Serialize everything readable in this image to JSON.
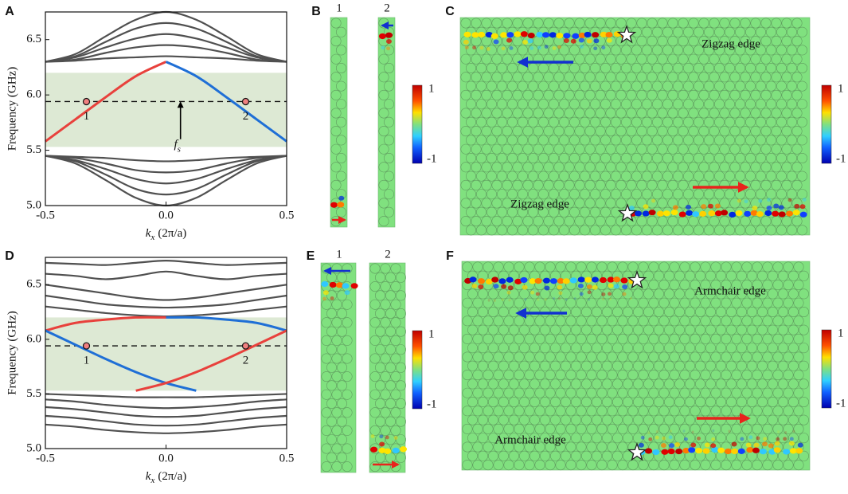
{
  "chart_data": [
    {
      "type": "line",
      "panel": "A",
      "ylabel": "Frequency (GHz)",
      "xlabel": [
        "k",
        "x",
        "(2π/a)"
      ],
      "x": [
        -0.5,
        -0.375,
        -0.25,
        -0.125,
        0,
        0.125,
        0.25,
        0.375,
        0.5
      ],
      "xlim": [
        -0.5,
        0.5
      ],
      "ylim": [
        5.0,
        6.75
      ],
      "xticks": [
        -0.5,
        {
          "value": 0,
          "label": "0.0"
        },
        0.5
      ],
      "yticks": [
        {
          "value": 5,
          "label": "5.0"
        },
        5.5,
        {
          "value": 6,
          "label": "6.0"
        },
        6.5
      ],
      "shaded": [
        5.53,
        6.2
      ],
      "dashed_y": 5.94,
      "points": [
        {
          "label": "1",
          "x": -0.33,
          "y": 5.94
        },
        {
          "label": "2",
          "x": 0.33,
          "y": 5.94
        }
      ],
      "fs_arrow": {
        "x": 0.06,
        "y": [
          5.6,
          5.93
        ]
      },
      "fs_label": [
        "f",
        "s"
      ],
      "series": [
        {
          "color": "#505050",
          "values": [
            6.3,
            6.31,
            6.33,
            6.34,
            6.35,
            6.34,
            6.33,
            6.31,
            6.3
          ]
        },
        {
          "color": "#505050",
          "values": [
            6.3,
            6.32,
            6.38,
            6.43,
            6.45,
            6.43,
            6.38,
            6.32,
            6.3
          ]
        },
        {
          "color": "#505050",
          "values": [
            6.3,
            6.34,
            6.43,
            6.51,
            6.55,
            6.51,
            6.43,
            6.34,
            6.3
          ]
        },
        {
          "color": "#505050",
          "values": [
            6.3,
            6.35,
            6.48,
            6.6,
            6.65,
            6.6,
            6.48,
            6.35,
            6.3
          ]
        },
        {
          "color": "#505050",
          "values": [
            6.3,
            6.37,
            6.53,
            6.68,
            6.75,
            6.68,
            6.53,
            6.37,
            6.3
          ]
        },
        {
          "color": "#505050",
          "values": [
            5.45,
            5.44,
            5.43,
            5.41,
            5.4,
            5.41,
            5.43,
            5.44,
            5.45
          ]
        },
        {
          "color": "#505050",
          "values": [
            5.45,
            5.43,
            5.38,
            5.32,
            5.3,
            5.32,
            5.38,
            5.43,
            5.45
          ]
        },
        {
          "color": "#505050",
          "values": [
            5.45,
            5.41,
            5.33,
            5.24,
            5.2,
            5.24,
            5.33,
            5.41,
            5.45
          ]
        },
        {
          "color": "#505050",
          "values": [
            5.45,
            5.4,
            5.28,
            5.15,
            5.1,
            5.15,
            5.28,
            5.4,
            5.45
          ]
        },
        {
          "color": "#505050",
          "values": [
            5.45,
            5.38,
            5.23,
            5.07,
            5.0,
            5.07,
            5.23,
            5.38,
            5.45
          ]
        },
        {
          "color": "#e8413c",
          "values": [
            5.58,
            5.78,
            5.98,
            6.17,
            6.3,
            null,
            null,
            null,
            null
          ]
        },
        {
          "color": "#1f6fd6",
          "values": [
            null,
            null,
            null,
            null,
            6.3,
            6.17,
            5.98,
            5.78,
            5.58
          ]
        }
      ]
    },
    {
      "type": "line",
      "panel": "D",
      "ylabel": "Frequency (GHz)",
      "xlabel": [
        "k",
        "x",
        "(2π/a)"
      ],
      "x": [
        -0.5,
        -0.375,
        -0.25,
        -0.125,
        0,
        0.125,
        0.25,
        0.375,
        0.5
      ],
      "xlim": [
        -0.5,
        0.5
      ],
      "ylim": [
        5.0,
        6.75
      ],
      "xticks": [
        -0.5,
        {
          "value": 0,
          "label": "0.0"
        },
        0.5
      ],
      "yticks": [
        {
          "value": 5,
          "label": "5.0"
        },
        5.5,
        {
          "value": 6,
          "label": "6.0"
        },
        6.5
      ],
      "shaded": [
        5.53,
        6.2
      ],
      "dashed_y": 5.94,
      "points": [
        {
          "label": "1",
          "x": -0.33,
          "y": 5.94
        },
        {
          "label": "2",
          "x": 0.33,
          "y": 5.94
        }
      ],
      "series": [
        {
          "color": "#505050",
          "values": [
            6.3,
            6.27,
            6.24,
            6.22,
            6.21,
            6.22,
            6.24,
            6.27,
            6.3
          ]
        },
        {
          "color": "#505050",
          "values": [
            6.4,
            6.36,
            6.32,
            6.3,
            6.29,
            6.3,
            6.32,
            6.36,
            6.4
          ]
        },
        {
          "color": "#505050",
          "values": [
            6.5,
            6.46,
            6.42,
            6.38,
            6.36,
            6.38,
            6.42,
            6.46,
            6.5
          ]
        },
        {
          "color": "#505050",
          "values": [
            6.6,
            6.58,
            6.55,
            6.58,
            6.62,
            6.58,
            6.55,
            6.58,
            6.6
          ]
        },
        {
          "color": "#505050",
          "values": [
            6.7,
            6.69,
            6.68,
            6.7,
            6.72,
            6.7,
            6.68,
            6.69,
            6.7
          ]
        },
        {
          "color": "#505050",
          "values": [
            5.5,
            5.49,
            5.48,
            5.47,
            5.47,
            5.47,
            5.48,
            5.49,
            5.5
          ]
        },
        {
          "color": "#505050",
          "values": [
            5.45,
            5.43,
            5.4,
            5.38,
            5.37,
            5.38,
            5.4,
            5.43,
            5.45
          ]
        },
        {
          "color": "#505050",
          "values": [
            5.38,
            5.36,
            5.33,
            5.3,
            5.29,
            5.3,
            5.33,
            5.36,
            5.38
          ]
        },
        {
          "color": "#505050",
          "values": [
            5.3,
            5.28,
            5.25,
            5.22,
            5.21,
            5.22,
            5.25,
            5.28,
            5.3
          ]
        },
        {
          "color": "#505050",
          "values": [
            5.22,
            5.2,
            5.17,
            5.15,
            5.14,
            5.15,
            5.17,
            5.2,
            5.22
          ]
        },
        {
          "color": "#e8413c",
          "values": [
            6.08,
            6.15,
            6.18,
            6.2,
            6.2,
            null,
            null,
            null,
            null
          ]
        },
        {
          "color": "#1f6fd6",
          "values": [
            null,
            null,
            null,
            null,
            6.2,
            6.2,
            6.18,
            6.15,
            6.08
          ]
        },
        {
          "color": "#1f6fd6",
          "values": [
            6.08,
            5.95,
            5.82,
            5.7,
            5.6,
            5.53,
            null,
            null,
            null
          ]
        },
        {
          "color": "#e8413c",
          "values": [
            null,
            null,
            null,
            5.53,
            5.6,
            5.7,
            5.82,
            5.95,
            6.08
          ]
        }
      ]
    }
  ],
  "maps": [
    {
      "panel": "B",
      "columns": [
        "1",
        "2"
      ],
      "colorbar": [
        "1",
        "-1"
      ]
    },
    {
      "panel": "C",
      "edge_labels": [
        "Zigzag edge",
        "Zigzag edge"
      ],
      "colorbar": [
        "1",
        "-1"
      ]
    },
    {
      "panel": "E",
      "columns": [
        "1",
        "2"
      ],
      "colorbar": [
        "1",
        "-1"
      ]
    },
    {
      "panel": "F",
      "edge_labels": [
        "Armchair edge",
        "Armchair edge"
      ],
      "colorbar": [
        "1",
        "-1"
      ]
    }
  ]
}
